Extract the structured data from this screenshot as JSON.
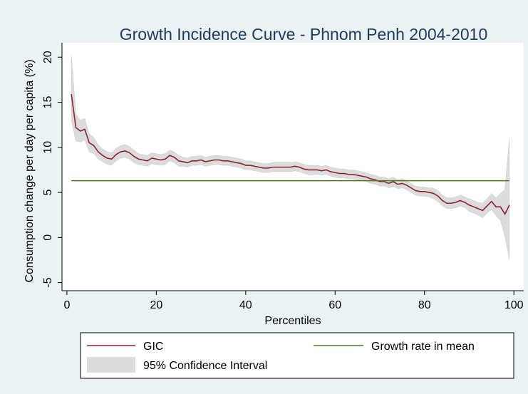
{
  "chart_data": {
    "type": "line",
    "title": "Growth Incidence Curve - Phnom Penh 2004-2010",
    "xlabel": "Percentiles",
    "ylabel": "Consumption change per day per capita (%)",
    "xlim": [
      -1.1,
      102.2
    ],
    "ylim": [
      -5.9,
      21.6
    ],
    "xticks": [
      0,
      20,
      40,
      60,
      80,
      100
    ],
    "yticks": [
      -5,
      0,
      5,
      10,
      15,
      20
    ],
    "x": [
      1,
      2,
      3,
      4,
      5,
      6,
      7,
      8,
      9,
      10,
      11,
      12,
      13,
      14,
      15,
      16,
      17,
      18,
      19,
      20,
      21,
      22,
      23,
      24,
      25,
      26,
      27,
      28,
      29,
      30,
      31,
      32,
      33,
      34,
      35,
      36,
      37,
      38,
      39,
      40,
      41,
      42,
      43,
      44,
      45,
      46,
      47,
      48,
      49,
      50,
      51,
      52,
      53,
      54,
      55,
      56,
      57,
      58,
      59,
      60,
      61,
      62,
      63,
      64,
      65,
      66,
      67,
      68,
      69,
      70,
      71,
      72,
      73,
      74,
      75,
      76,
      77,
      78,
      79,
      80,
      81,
      82,
      83,
      84,
      85,
      86,
      87,
      88,
      89,
      90,
      91,
      92,
      93,
      94,
      95,
      96,
      97,
      98,
      99
    ],
    "band": {
      "name": "95% Confidence Interval",
      "color": "#dcdcdc",
      "lower": [
        13.0,
        10.7,
        10.6,
        10.8,
        9.5,
        9.3,
        8.7,
        8.4,
        8.1,
        8.0,
        8.5,
        8.8,
        8.9,
        8.7,
        8.3,
        8.1,
        8.0,
        7.9,
        8.2,
        8.1,
        8.0,
        8.1,
        8.5,
        8.3,
        7.9,
        7.9,
        7.8,
        8.0,
        8.0,
        8.1,
        7.9,
        8.0,
        8.1,
        8.1,
        8.0,
        8.0,
        7.9,
        7.8,
        7.7,
        7.5,
        7.5,
        7.4,
        7.3,
        7.2,
        7.2,
        7.3,
        7.3,
        7.3,
        7.3,
        7.3,
        7.4,
        7.3,
        7.1,
        7.0,
        7.0,
        7.0,
        6.9,
        7.0,
        6.8,
        6.7,
        6.6,
        6.6,
        6.5,
        6.5,
        6.4,
        6.3,
        6.2,
        6.0,
        5.9,
        5.7,
        5.7,
        5.5,
        5.7,
        5.4,
        5.5,
        5.3,
        5.0,
        4.7,
        4.6,
        4.6,
        4.5,
        4.3,
        4.0,
        3.5,
        3.2,
        3.2,
        3.3,
        3.5,
        3.3,
        2.9,
        2.7,
        2.5,
        2.2,
        2.7,
        3.1,
        2.4,
        1.9,
        0.1,
        -2.4
      ],
      "upper": [
        20.2,
        13.7,
        13.0,
        13.2,
        11.5,
        11.1,
        10.3,
        9.8,
        9.5,
        9.4,
        9.9,
        10.2,
        10.3,
        10.1,
        9.7,
        9.3,
        9.2,
        9.1,
        9.4,
        9.3,
        9.2,
        9.3,
        9.7,
        9.5,
        9.1,
        8.9,
        8.8,
        9.0,
        9.0,
        9.1,
        8.9,
        9.0,
        9.1,
        9.1,
        9.0,
        9.0,
        8.9,
        8.8,
        8.7,
        8.5,
        8.5,
        8.4,
        8.3,
        8.2,
        8.2,
        8.3,
        8.3,
        8.3,
        8.3,
        8.3,
        8.4,
        8.3,
        8.1,
        8.0,
        8.0,
        8.0,
        7.9,
        8.0,
        7.8,
        7.7,
        7.6,
        7.6,
        7.5,
        7.5,
        7.4,
        7.3,
        7.2,
        7.0,
        6.9,
        6.7,
        6.7,
        6.5,
        6.7,
        6.4,
        6.5,
        6.3,
        6.0,
        5.7,
        5.6,
        5.6,
        5.5,
        5.5,
        5.2,
        4.7,
        4.4,
        4.4,
        4.5,
        4.7,
        4.5,
        4.3,
        4.1,
        3.9,
        3.8,
        4.3,
        4.9,
        4.4,
        4.9,
        5.3,
        11.1
      ]
    },
    "series": [
      {
        "name": "GIC",
        "color": "#8b2232",
        "values": [
          15.9,
          12.2,
          11.8,
          12.0,
          10.5,
          10.2,
          9.5,
          9.1,
          8.8,
          8.7,
          9.2,
          9.5,
          9.6,
          9.4,
          9.0,
          8.7,
          8.6,
          8.5,
          8.8,
          8.7,
          8.6,
          8.7,
          9.1,
          8.9,
          8.5,
          8.4,
          8.3,
          8.5,
          8.5,
          8.6,
          8.4,
          8.5,
          8.6,
          8.6,
          8.5,
          8.5,
          8.4,
          8.3,
          8.2,
          8.0,
          8.0,
          7.9,
          7.8,
          7.7,
          7.7,
          7.8,
          7.8,
          7.8,
          7.8,
          7.8,
          7.9,
          7.8,
          7.6,
          7.5,
          7.5,
          7.5,
          7.4,
          7.5,
          7.3,
          7.2,
          7.1,
          7.1,
          7.0,
          7.0,
          6.9,
          6.8,
          6.7,
          6.5,
          6.4,
          6.2,
          6.2,
          6.0,
          6.2,
          5.9,
          6.0,
          5.8,
          5.5,
          5.2,
          5.1,
          5.1,
          5.0,
          4.9,
          4.6,
          4.1,
          3.8,
          3.8,
          3.9,
          4.1,
          3.9,
          3.6,
          3.4,
          3.2,
          3.0,
          3.5,
          4.0,
          3.4,
          3.4,
          2.6,
          3.6
        ]
      },
      {
        "name": "Growth rate in mean",
        "color": "#4a7a1c",
        "x": [
          1,
          99
        ],
        "values": [
          6.3,
          6.3
        ]
      }
    ]
  }
}
